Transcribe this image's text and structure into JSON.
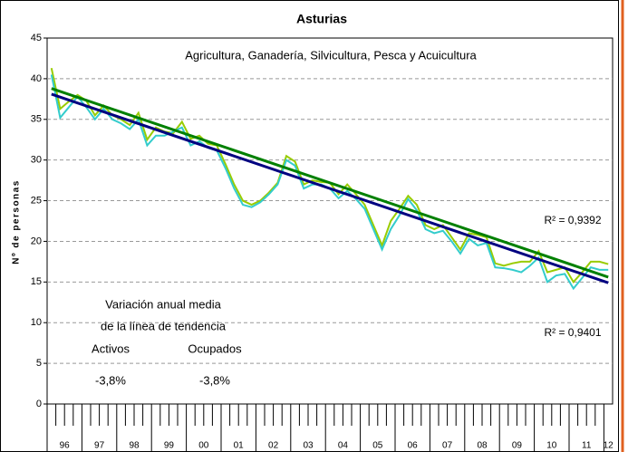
{
  "chart_data": {
    "type": "line",
    "title": "Asturias",
    "subtitle": "Agricultura, Ganadería, Silvicultura, Pesca y Acuicultura",
    "y_label": "Nº de personas",
    "categories": [
      "96",
      null,
      null,
      null,
      "97",
      null,
      null,
      null,
      "98",
      null,
      null,
      null,
      "99",
      null,
      null,
      null,
      "00",
      null,
      null,
      null,
      "01",
      null,
      null,
      null,
      "02",
      null,
      null,
      null,
      "03",
      null,
      null,
      null,
      "04",
      null,
      null,
      null,
      "05",
      null,
      null,
      null,
      "06",
      null,
      null,
      null,
      "07",
      null,
      null,
      null,
      "08",
      null,
      null,
      null,
      "09",
      null,
      null,
      null,
      "10",
      null,
      null,
      null,
      "11",
      null,
      null,
      null,
      "12"
    ],
    "series": [
      {
        "name": "Activos",
        "color": "#99cc00",
        "values": [
          41.3,
          36.3,
          37.2,
          38.0,
          37.3,
          35.5,
          36.7,
          35.5,
          35.0,
          34.3,
          35.8,
          32.5,
          34.0,
          33.5,
          33.3,
          34.7,
          32.6,
          33.0,
          32.0,
          31.8,
          29.5,
          27.0,
          25.0,
          24.5,
          25.0,
          26.0,
          27.2,
          30.5,
          29.8,
          27.0,
          27.5,
          27.3,
          27.2,
          25.8,
          27.0,
          25.8,
          24.5,
          22.0,
          19.5,
          22.5,
          24.0,
          25.6,
          24.5,
          22.0,
          21.5,
          22.0,
          20.5,
          19.0,
          21.0,
          20.8,
          20.5,
          17.3,
          17.0,
          17.3,
          17.5,
          17.5,
          18.8,
          16.2,
          16.5,
          16.8,
          15.0,
          16.2,
          17.5,
          17.5,
          17.2
        ],
        "trend": {
          "color": "#008000",
          "values": [
            38.8,
            15.6
          ],
          "r2": "R² = 0,9392"
        }
      },
      {
        "name": "Ocupados",
        "color": "#33cccc",
        "values": [
          40.5,
          35.2,
          36.5,
          37.8,
          36.5,
          35.0,
          36.3,
          35.0,
          34.5,
          33.8,
          35.0,
          31.8,
          33.0,
          33.0,
          33.5,
          34.0,
          31.8,
          32.3,
          31.5,
          31.2,
          29.0,
          26.5,
          24.5,
          24.2,
          24.8,
          25.8,
          27.0,
          30.0,
          29.3,
          26.5,
          27.0,
          27.0,
          26.5,
          25.3,
          26.2,
          25.2,
          24.0,
          21.5,
          19.0,
          21.5,
          23.2,
          25.2,
          23.8,
          21.5,
          21.0,
          21.3,
          20.0,
          18.5,
          20.3,
          19.5,
          19.8,
          16.8,
          16.7,
          16.5,
          16.2,
          17.0,
          18.0,
          15.0,
          15.8,
          16.0,
          14.2,
          15.5,
          16.8,
          16.5,
          16.5
        ],
        "trend": {
          "color": "#000080",
          "values": [
            38.1,
            14.9
          ],
          "r2": "R² = 0,9401"
        }
      }
    ],
    "ylim": [
      0,
      45
    ],
    "yticks": [
      0,
      5,
      10,
      15,
      20,
      25,
      30,
      35,
      40,
      45
    ],
    "grid": true,
    "annotations": [
      "Variación anual media",
      "de la línea de tendencia",
      "Activos",
      "Ocupados",
      "-3,8%",
      "-3,8%"
    ]
  }
}
